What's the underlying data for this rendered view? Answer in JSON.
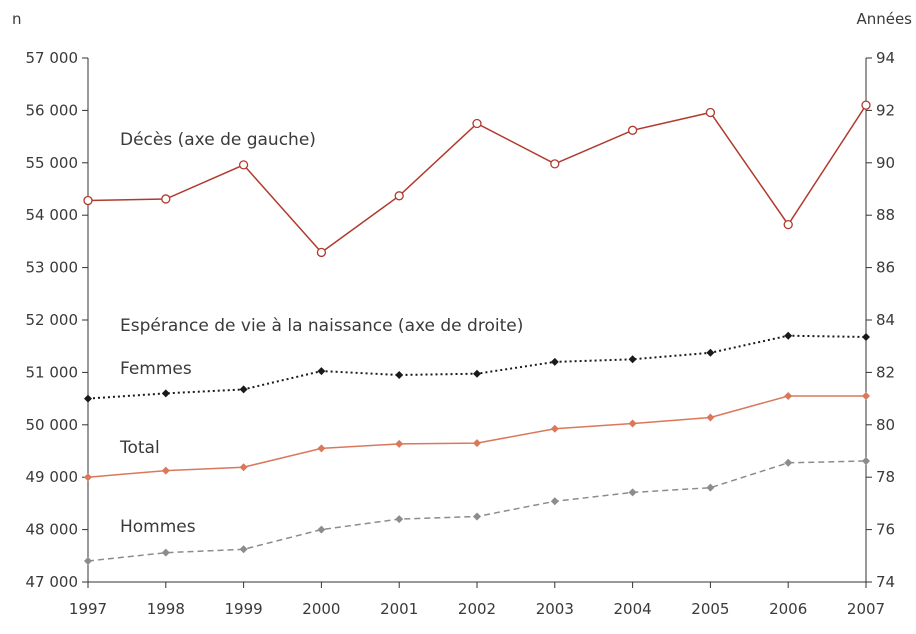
{
  "chart_data": {
    "type": "line",
    "left_axis_unit": "n",
    "right_axis_unit": "Années",
    "x": [
      "1997",
      "1998",
      "1999",
      "2000",
      "2001",
      "2002",
      "2003",
      "2004",
      "2005",
      "2006",
      "2007"
    ],
    "left_axis": {
      "ylim": [
        47000,
        57000
      ],
      "ticks": [
        "47 000",
        "48 000",
        "49 000",
        "50 000",
        "51 000",
        "52 000",
        "53 000",
        "54 000",
        "55 000",
        "56 000",
        "57 000"
      ]
    },
    "right_axis": {
      "ylim": [
        74,
        94
      ],
      "ticks": [
        "74",
        "76",
        "78",
        "80",
        "82",
        "84",
        "86",
        "88",
        "90",
        "92",
        "94"
      ]
    },
    "series": [
      {
        "key": "deces",
        "axis": "left",
        "color": "#b03a2e",
        "line": "solid",
        "marker": "circle-open",
        "values": [
          54280,
          54310,
          54960,
          53290,
          54370,
          55750,
          54980,
          55620,
          55960,
          53820,
          56100
        ]
      },
      {
        "key": "femmes",
        "axis": "right",
        "color": "#1a1a1a",
        "line": "dotted",
        "marker": "diamond",
        "values": [
          81.0,
          81.2,
          81.35,
          82.05,
          81.9,
          81.95,
          82.4,
          82.5,
          82.75,
          83.4,
          83.35
        ]
      },
      {
        "key": "total",
        "axis": "right",
        "color": "#d9785b",
        "line": "solid",
        "marker": "diamond",
        "values": [
          78.0,
          78.25,
          78.38,
          79.1,
          79.27,
          79.3,
          79.85,
          80.05,
          80.28,
          81.1,
          81.1
        ]
      },
      {
        "key": "hommes",
        "axis": "right",
        "color": "#8c8c8c",
        "line": "dashed",
        "marker": "diamond",
        "values": [
          74.8,
          75.12,
          75.25,
          76.0,
          76.4,
          76.5,
          77.08,
          77.42,
          77.6,
          78.55,
          78.62
        ]
      }
    ],
    "annotations": {
      "deces": "Décès (axe de gauche)",
      "esperance": "Espérance de vie à la naissance (axe de droite)",
      "femmes": "Femmes",
      "total": "Total",
      "hommes": "Hommes"
    },
    "grid": false
  }
}
